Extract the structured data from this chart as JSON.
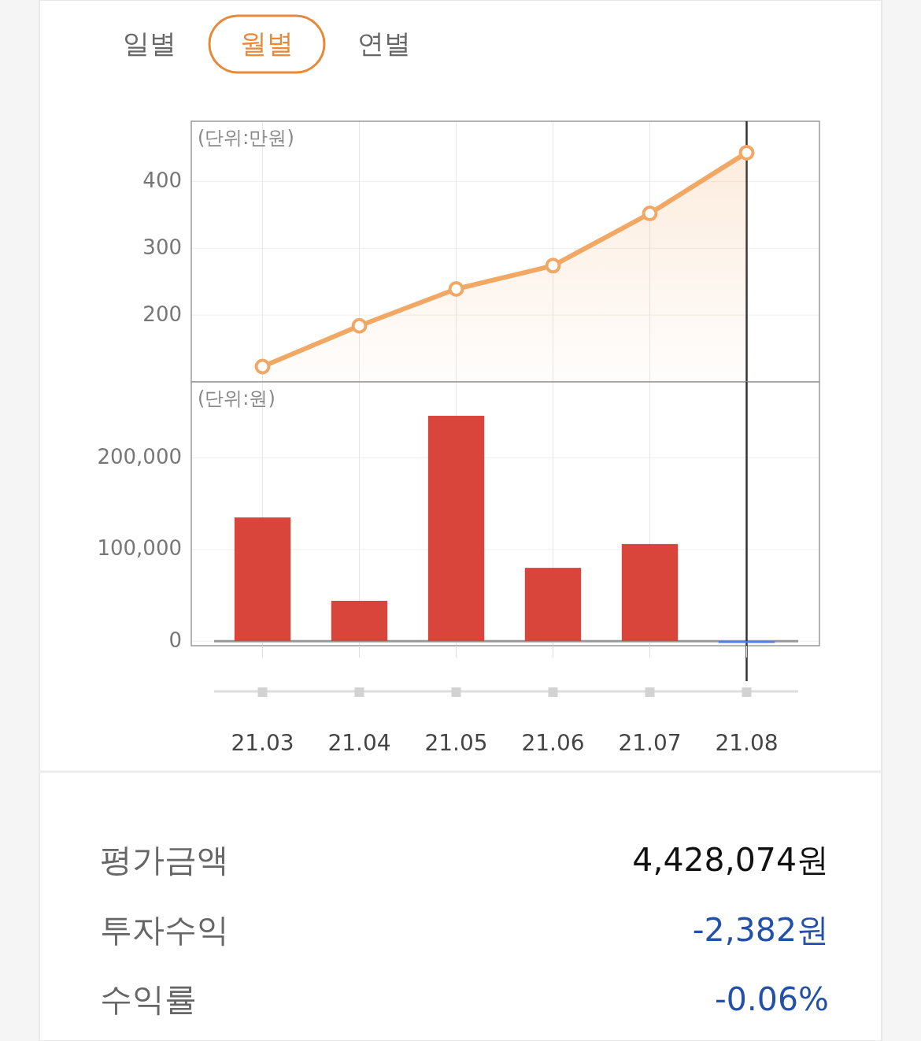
{
  "chart_data": [
    {
      "type": "other",
      "categories": [
        "일별",
        "월별",
        "연별"
      ],
      "colors": [
        "#666666",
        "#e8893a",
        "#666666"
      ]
    },
    {
      "type": "area",
      "categories": [
        "21.03",
        "21.04",
        "21.05",
        "21.06",
        "21.07",
        "21.08"
      ],
      "series": [
        {
          "color": "#f2a865",
          "values": [
            123,
            184,
            239,
            274,
            352,
            443
          ]
        }
      ],
      "ylabel": "(단위:만원)",
      "ylim": [
        100,
        490
      ],
      "yticks": [
        200,
        300,
        400
      ],
      "grid": true,
      "marker": "circle",
      "tick_labels": "y",
      "ref_lines": [
        {
          "axis": "x",
          "value": "21.08",
          "color": "#333333"
        }
      ]
    },
    {
      "type": "bar",
      "categories": [
        "21.03",
        "21.04",
        "21.05",
        "21.06",
        "21.07",
        "21.08"
      ],
      "values": [
        135000,
        44000,
        246000,
        80000,
        106000,
        -2000
      ],
      "colors": [
        "#d9443b",
        "#d9443b",
        "#d9443b",
        "#d9443b",
        "#d9443b",
        "#4a7ee6"
      ],
      "ylabel": "(단위:원)",
      "ylim": [
        -5000,
        283000
      ],
      "yticks": [
        0,
        {
          "value": 100000,
          "label": "100,000"
        },
        {
          "value": 200000,
          "label": "200,000"
        }
      ],
      "grid": true,
      "ref_lines": [
        {
          "axis": "x",
          "value": "21.08",
          "color": "#333333"
        }
      ]
    },
    {
      "type": "other",
      "categories": [
        "평가금액",
        "투자수익",
        "수익률"
      ],
      "value_labels": [
        "4,428,074원",
        "-2,382원",
        "-0.06%"
      ],
      "colors": [
        "#111111",
        "#2350a8",
        "#2350a8"
      ]
    }
  ]
}
